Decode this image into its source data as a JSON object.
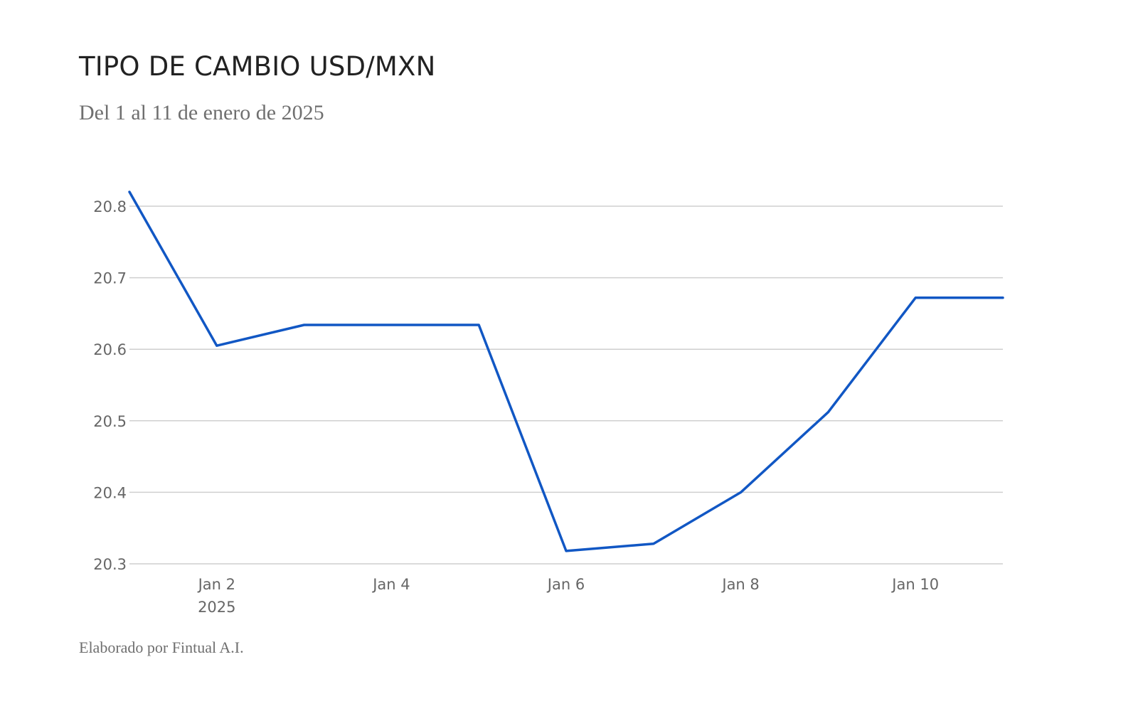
{
  "header": {
    "title": "TIPO DE CAMBIO USD/MXN",
    "subtitle": "Del 1 al 11 de enero de 2025"
  },
  "footer": {
    "credit": "Elaborado por Fintual A.I."
  },
  "colors": {
    "line": "#1157c4",
    "grid": "#cfcfcf",
    "tick_text": "#666666",
    "title_text": "#222222",
    "subtitle_text": "#6f6f6f"
  },
  "chart_data": {
    "type": "line",
    "title": "TIPO DE CAMBIO USD/MXN",
    "subtitle": "Del 1 al 11 de enero de 2025",
    "xlabel": "",
    "ylabel": "",
    "x": [
      "2025-01-01",
      "2025-01-02",
      "2025-01-03",
      "2025-01-04",
      "2025-01-05",
      "2025-01-06",
      "2025-01-07",
      "2025-01-08",
      "2025-01-09",
      "2025-01-10",
      "2025-01-11"
    ],
    "series": [
      {
        "values": [
          20.82,
          20.605,
          20.634,
          20.634,
          20.634,
          20.318,
          20.328,
          20.4,
          20.512,
          20.672,
          20.672
        ]
      }
    ],
    "xlim": [
      "2025-01-01",
      "2025-01-11"
    ],
    "ylim": [
      20.3,
      20.82
    ],
    "yticks": [
      20.3,
      20.4,
      20.5,
      20.6,
      20.7,
      20.8
    ],
    "ytick_labels": [
      "20.3",
      "20.4",
      "20.5",
      "20.6",
      "20.7",
      "20.8"
    ],
    "xticks": [
      {
        "date": "2025-01-02",
        "label": "Jan 2",
        "sublabel": "2025"
      },
      {
        "date": "2025-01-04",
        "label": "Jan 4",
        "sublabel": ""
      },
      {
        "date": "2025-01-06",
        "label": "Jan 6",
        "sublabel": ""
      },
      {
        "date": "2025-01-08",
        "label": "Jan 8",
        "sublabel": ""
      },
      {
        "date": "2025-01-10",
        "label": "Jan 10",
        "sublabel": ""
      }
    ],
    "grid": true,
    "legend": "none"
  }
}
